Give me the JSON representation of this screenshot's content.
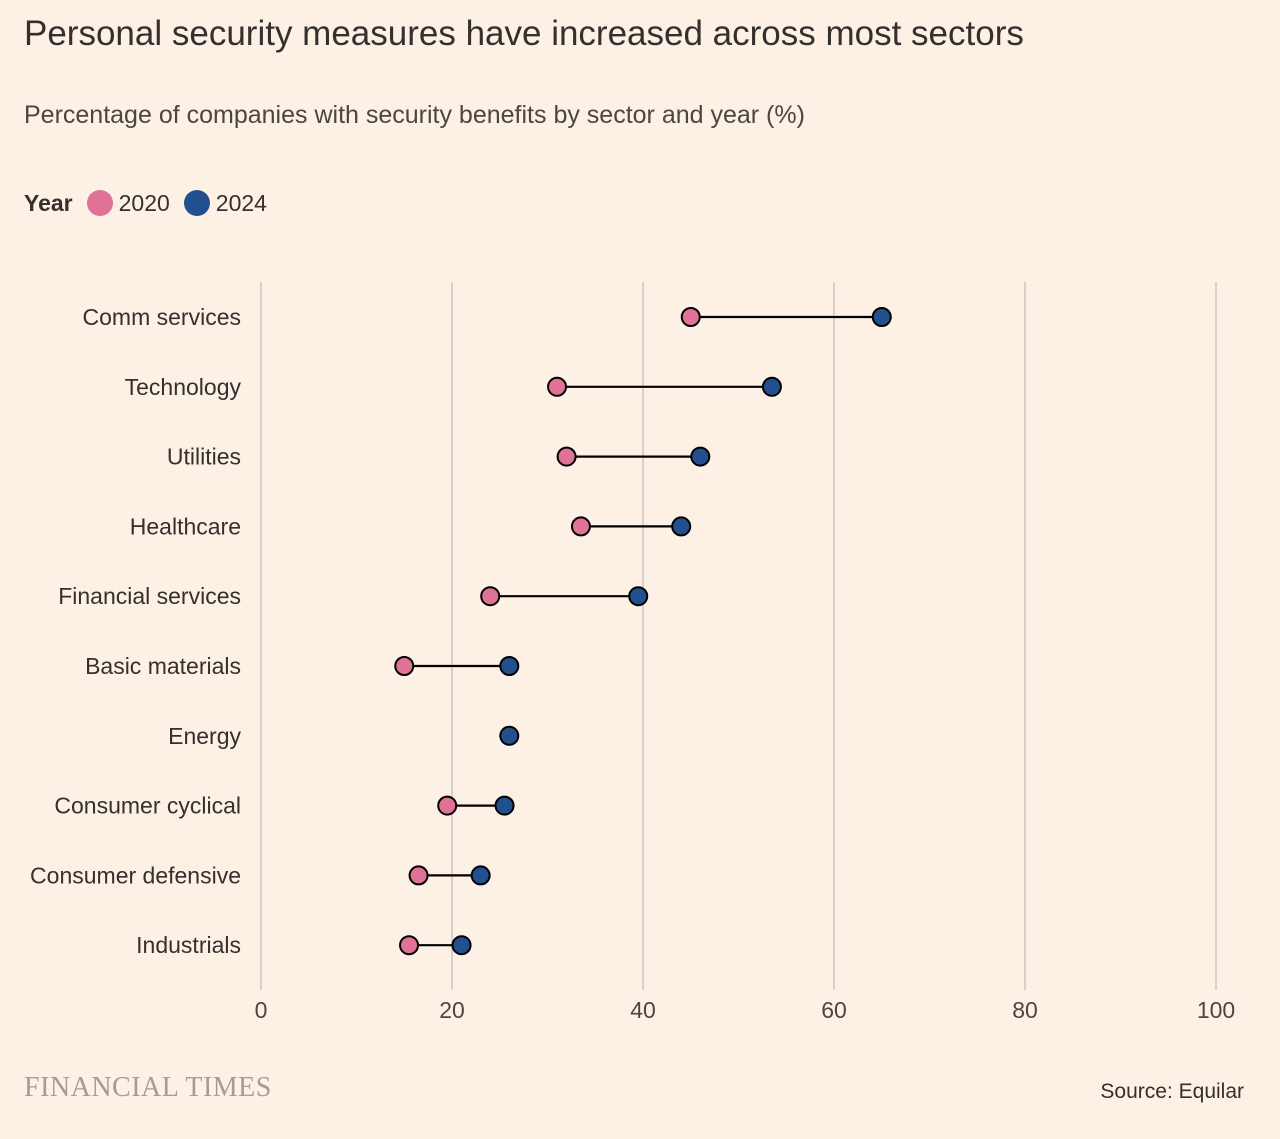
{
  "title": "Personal security measures have increased across most sectors",
  "subtitle": "Percentage of companies with security benefits by sector and year (%)",
  "legend": {
    "title": "Year",
    "items": [
      {
        "label": "2020",
        "color": "#e07298"
      },
      {
        "label": "2024",
        "color": "#22508f"
      }
    ]
  },
  "chart_data": {
    "type": "dumbbell",
    "xlim": [
      0,
      100
    ],
    "xticks": [
      "0",
      "20",
      "40",
      "60",
      "80",
      "100"
    ],
    "grid": true,
    "legend_position": "top-left",
    "categories": [
      "Comm services",
      "Technology",
      "Utilities",
      "Healthcare",
      "Financial services",
      "Basic materials",
      "Energy",
      "Consumer cyclical",
      "Consumer defensive",
      "Industrials"
    ],
    "series": [
      {
        "name": "2020",
        "color": "#e07298",
        "values": [
          45,
          31,
          32,
          33.5,
          24,
          15,
          null,
          19.5,
          16.5,
          15.5
        ]
      },
      {
        "name": "2024",
        "color": "#22508f",
        "values": [
          65,
          53.5,
          46,
          44,
          39.5,
          26,
          26,
          25.5,
          23,
          21
        ]
      }
    ]
  },
  "footer": {
    "brand": "FINANCIAL TIMES",
    "source": "Source: Equilar"
  }
}
